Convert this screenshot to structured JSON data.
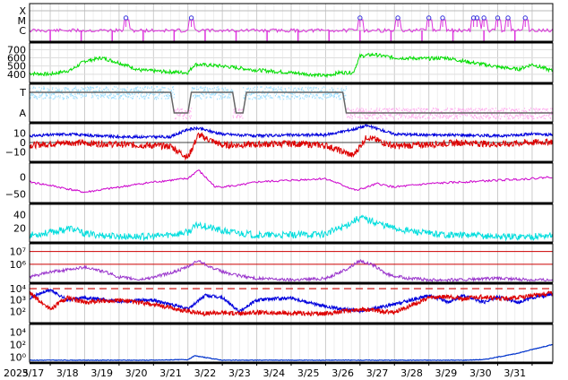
{
  "chart_data": {
    "type": "line",
    "year_label": "2025",
    "x_tick_labels": [
      "3/17",
      "3/18",
      "3/19",
      "3/20",
      "3/21",
      "3/22",
      "3/23",
      "3/24",
      "3/25",
      "3/26",
      "3/27",
      "3/28",
      "3/29",
      "3/30",
      "3/31"
    ],
    "x_day_range": [
      16.4,
      31.6
    ],
    "panels": [
      {
        "id": "xray-class",
        "y_tick_labels": [
          "X",
          "M",
          "C"
        ],
        "series_color": "#dd33dd",
        "marker_days": [
          19.2,
          21.1,
          26.0,
          27.1,
          28.0,
          28.4,
          29.3,
          29.4,
          29.6,
          30.0,
          30.3,
          30.8
        ]
      },
      {
        "id": "speed",
        "y_tick_labels": [
          "700",
          "600",
          "500",
          "400"
        ],
        "y_ticks": [
          700,
          600,
          500,
          400
        ],
        "ylim": [
          300,
          780
        ],
        "series": [
          {
            "color": "#00dd00",
            "days": [
              16.4,
              17.0,
              17.6,
              18.0,
              18.5,
              19.0,
              19.6,
              20.4,
              21.0,
              21.2,
              22.0,
              23.0,
              24.0,
              25.0,
              25.4,
              25.8,
              26.0,
              26.4,
              27.0,
              28.0,
              28.5,
              29.0,
              30.0,
              30.6,
              31.0,
              31.6
            ],
            "values": [
              410,
              400,
              450,
              560,
              600,
              540,
              450,
              430,
              420,
              520,
              500,
              450,
              420,
              380,
              420,
              420,
              620,
              640,
              600,
              590,
              600,
              560,
              490,
              460,
              520,
              440
            ]
          }
        ]
      },
      {
        "id": "polarity",
        "y_tick_labels": [
          "T",
          "A"
        ],
        "series": [
          {
            "color": "#99ddff",
            "name": "T"
          },
          {
            "color": "#ffaaee",
            "name": "A"
          },
          {
            "color": "#666666",
            "name": "sector"
          }
        ]
      },
      {
        "id": "imf",
        "y_tick_labels": [
          "10",
          "0",
          "−10"
        ],
        "y_ticks": [
          10,
          0,
          -10
        ],
        "ylim": [
          -20,
          20
        ],
        "series": [
          {
            "color": "#0000dd",
            "days": [
              16.4,
              17.5,
              19.0,
              20.5,
              21.0,
              21.3,
              22.0,
              23.0,
              24.0,
              25.0,
              25.8,
              26.2,
              27.0,
              28.0,
              29.0,
              30.0,
              31.0,
              31.6
            ],
            "values": [
              7,
              9,
              6,
              6,
              14,
              15,
              9,
              7,
              8,
              8,
              14,
              18,
              9,
              8,
              8,
              7,
              9,
              8
            ]
          },
          {
            "color": "#dd0000",
            "days": [
              16.4,
              17.5,
              19.0,
              20.5,
              21.0,
              21.3,
              22.0,
              23.0,
              24.0,
              25.0,
              25.8,
              26.2,
              27.0,
              28.0,
              29.0,
              30.0,
              31.0,
              31.6
            ],
            "values": [
              -3,
              0,
              -2,
              -4,
              -16,
              8,
              -3,
              -2,
              -1,
              -3,
              -14,
              6,
              -4,
              -2,
              0,
              -2,
              0,
              1
            ]
          }
        ]
      },
      {
        "id": "dst",
        "y_tick_labels": [
          "0",
          "−50"
        ],
        "y_ticks": [
          0,
          -50
        ],
        "ylim": [
          -75,
          40
        ],
        "series": [
          {
            "color": "#cc00cc",
            "days": [
              16.4,
              17.0,
              18.0,
              19.0,
              20.0,
              21.0,
              21.3,
              21.8,
              22.5,
              23.0,
              24.0,
              25.0,
              25.9,
              26.5,
              27.0,
              28.0,
              29.0,
              30.0,
              31.0,
              31.6
            ],
            "values": [
              -15,
              -25,
              -45,
              -30,
              -15,
              -5,
              20,
              -30,
              -25,
              -15,
              -10,
              -5,
              -40,
              -20,
              -30,
              -20,
              -15,
              -10,
              -5,
              0
            ]
          }
        ]
      },
      {
        "id": "kp",
        "y_tick_labels": [
          "40",
          "20"
        ],
        "y_ticks": [
          40,
          20
        ],
        "ylim": [
          0,
          55
        ],
        "series": [
          {
            "color": "#00dddd",
            "days": [
              16.4,
              17.0,
              17.6,
              18.0,
              19.0,
              20.0,
              21.0,
              21.3,
              22.0,
              23.0,
              24.0,
              25.0,
              25.5,
              26.0,
              26.5,
              27.0,
              28.0,
              29.0,
              30.0,
              31.0,
              31.6
            ],
            "values": [
              10,
              14,
              20,
              12,
              8,
              8,
              14,
              26,
              16,
              10,
              10,
              12,
              22,
              36,
              28,
              20,
              12,
              10,
              8,
              8,
              10
            ]
          }
        ]
      },
      {
        "id": "electron",
        "y_tick_labels": [
          "10⁷",
          "10⁶"
        ],
        "y_tick_exponents": [
          7,
          6
        ],
        "ylim_log": [
          4.6,
          7.6
        ],
        "threshold_lines": [
          {
            "value_log": 7.0,
            "color": "#cc0000"
          },
          {
            "value_log": 6.0,
            "color": "#cc0000"
          }
        ],
        "series": [
          {
            "color": "#9933cc",
            "days": [
              16.4,
              17.0,
              17.6,
              18.0,
              18.6,
              19.0,
              19.6,
              20.0,
              20.6,
              21.0,
              21.3,
              21.8,
              22.3,
              23.0,
              24.0,
              25.0,
              25.6,
              26.0,
              26.4,
              26.8,
              27.4,
              28.0,
              29.0,
              30.0,
              31.0,
              31.6
            ],
            "values": [
              5.0,
              5.4,
              5.6,
              5.8,
              5.4,
              5.0,
              4.8,
              5.0,
              5.4,
              5.8,
              6.3,
              5.6,
              5.2,
              4.9,
              4.8,
              4.9,
              5.6,
              6.3,
              5.9,
              5.2,
              4.9,
              4.8,
              4.8,
              4.9,
              4.8,
              4.8
            ]
          }
        ]
      },
      {
        "id": "proton",
        "y_tick_labels": [
          "10⁴",
          "10³",
          "10²"
        ],
        "y_tick_exponents": [
          4,
          3,
          2
        ],
        "ylim_log": [
          1.0,
          4.4
        ],
        "threshold_lines": [
          {
            "value_log": 4.0,
            "color": "#cc0000",
            "dashed": true
          }
        ],
        "series": [
          {
            "color": "#0000dd",
            "days": [
              16.4,
              17.0,
              17.5,
              18.0,
              19.0,
              20.0,
              21.0,
              21.5,
              22.0,
              22.5,
              23.0,
              24.0,
              25.0,
              26.0,
              27.0,
              28.0,
              28.6,
              29.0,
              29.6,
              30.0,
              30.6,
              31.0,
              31.6
            ],
            "values": [
              3.2,
              3.9,
              3.0,
              3.2,
              2.9,
              3.0,
              2.2,
              3.4,
              3.2,
              2.0,
              3.0,
              3.2,
              2.4,
              2.0,
              2.6,
              3.4,
              2.8,
              3.4,
              2.8,
              3.3,
              2.8,
              3.2,
              3.5
            ]
          },
          {
            "color": "#dd0000",
            "days": [
              16.4,
              17.0,
              17.5,
              18.0,
              19.0,
              20.0,
              21.0,
              21.5,
              22.0,
              22.5,
              23.0,
              24.0,
              25.0,
              26.0,
              27.0,
              28.0,
              28.6,
              29.0,
              29.6,
              30.0,
              30.6,
              31.0,
              31.6
            ],
            "values": [
              3.6,
              2.2,
              3.2,
              2.8,
              3.0,
              2.6,
              2.0,
              1.8,
              1.9,
              1.8,
              1.9,
              1.8,
              1.8,
              2.2,
              1.9,
              3.2,
              3.3,
              3.1,
              3.3,
              3.1,
              3.2,
              3.4,
              3.6
            ]
          }
        ]
      },
      {
        "id": "bottom",
        "y_tick_labels": [
          "10⁴",
          "10²",
          "10⁰"
        ],
        "y_tick_exponents": [
          4,
          2,
          0
        ],
        "ylim_log": [
          -0.8,
          5.2
        ],
        "series": [
          {
            "color": "#0033cc",
            "days": [
              16.4,
              18.0,
              20.0,
              21.0,
              21.2,
              22.0,
              24.0,
              26.0,
              28.0,
              29.0,
              29.6,
              30.0,
              30.5,
              31.0,
              31.6
            ],
            "values": [
              -0.5,
              -0.5,
              -0.5,
              -0.4,
              0.2,
              -0.5,
              -0.5,
              -0.5,
              -0.5,
              -0.5,
              -0.4,
              0.0,
              0.5,
              1.2,
              2.0
            ]
          }
        ]
      }
    ]
  }
}
